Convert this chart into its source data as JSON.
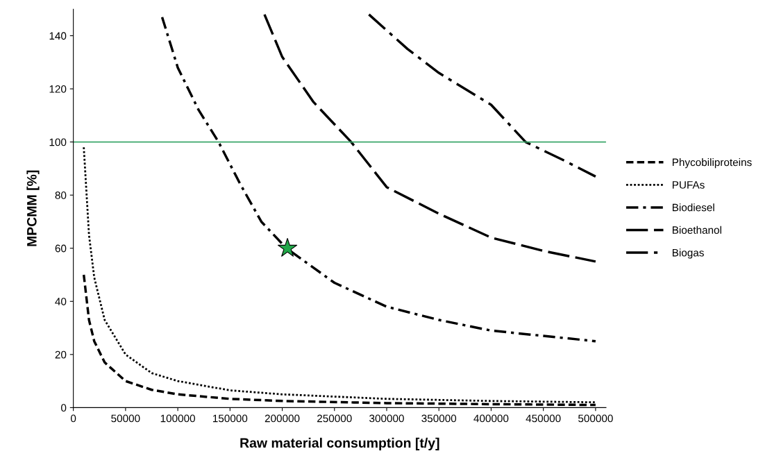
{
  "chart_data": {
    "type": "line",
    "xlabel": "Raw material consumption [t/y]",
    "ylabel": "MPCMM [%]",
    "xlim": [
      0,
      510000
    ],
    "ylim": [
      0,
      150
    ],
    "xticks": [
      0,
      50000,
      100000,
      150000,
      200000,
      250000,
      300000,
      350000,
      400000,
      450000,
      500000
    ],
    "yticks": [
      0,
      20,
      40,
      60,
      80,
      100,
      120,
      140
    ],
    "grid": false,
    "legend": "right",
    "marker": "none",
    "ref_lines": [
      {
        "axis": "y",
        "value": 100,
        "label": null,
        "color": "#3aa66a",
        "line_style": "solid"
      }
    ],
    "series": [
      {
        "name": "Phycobiliproteins",
        "color": "#000000",
        "line_style": "dashed",
        "x": [
          10000,
          15000,
          20000,
          30000,
          50000,
          75000,
          100000,
          150000,
          200000,
          300000,
          400000,
          500000
        ],
        "values": [
          50,
          33,
          25,
          17,
          10,
          6.7,
          5,
          3.3,
          2.5,
          1.7,
          1.3,
          1
        ]
      },
      {
        "name": "PUFAs",
        "color": "#000000",
        "line_style": "dotted",
        "x": [
          10000,
          15000,
          20000,
          30000,
          50000,
          75000,
          100000,
          150000,
          200000,
          300000,
          400000,
          500000
        ],
        "values": [
          98,
          65,
          49,
          33,
          20,
          13,
          10,
          6.5,
          5,
          3.3,
          2.5,
          2
        ]
      },
      {
        "name": "Biodiesel",
        "color": "#000000",
        "line_style": "dashdot",
        "x": [
          85000,
          100000,
          120000,
          139000,
          160000,
          180000,
          204000,
          250000,
          300000,
          350000,
          400000,
          450000,
          500000
        ],
        "values": [
          147,
          128,
          112,
          100,
          84,
          70,
          60,
          47,
          38,
          33,
          29,
          27,
          25
        ]
      },
      {
        "name": "Bioethanol",
        "color": "#000000",
        "line_style": "longdash",
        "x": [
          183000,
          200000,
          230000,
          266000,
          300000,
          350000,
          400000,
          450000,
          500000
        ],
        "values": [
          148,
          132,
          115,
          100,
          83,
          73,
          64,
          59,
          55
        ]
      },
      {
        "name": "Biogas",
        "color": "#000000",
        "line_style": "dashdotdot",
        "x": [
          283000,
          320000,
          350000,
          400000,
          433000,
          470000,
          500000
        ],
        "values": [
          148,
          135,
          126,
          114,
          100,
          93,
          87
        ]
      },
      {
        "type": "scatter",
        "color": "#22a84a",
        "marker": "star",
        "x": [
          205000
        ],
        "values": [
          60
        ]
      }
    ]
  }
}
